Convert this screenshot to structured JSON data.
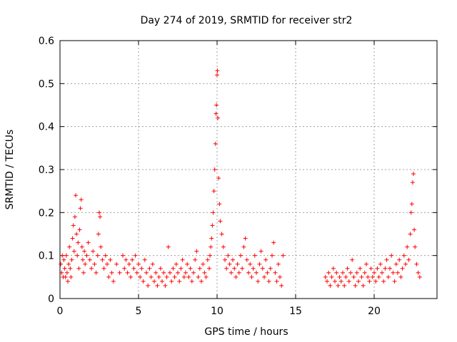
{
  "chart_data": {
    "type": "scatter",
    "title": "Day 274 of 2019, SRMTID for receiver str2",
    "xlabel": "GPS time / hours",
    "ylabel": "SRMTID / TECUs",
    "xlim": [
      0,
      24
    ],
    "ylim": [
      0,
      0.6
    ],
    "xticks": [
      0,
      5,
      10,
      15,
      20
    ],
    "yticks": [
      0,
      0.1,
      0.2,
      0.3,
      0.4,
      0.5,
      0.6
    ],
    "ytick_labels": [
      "0",
      "0.1",
      "0.2",
      "0.3",
      "0.4",
      "0.5",
      "0.6"
    ],
    "grid": true,
    "marker": "+",
    "color": "#ff0000",
    "series": [
      {
        "name": "SRMTID",
        "points": [
          [
            0.05,
            0.08
          ],
          [
            0.1,
            0.06
          ],
          [
            0.15,
            0.1
          ],
          [
            0.2,
            0.05
          ],
          [
            0.25,
            0.09
          ],
          [
            0.3,
            0.07
          ],
          [
            0.35,
            0.05
          ],
          [
            0.4,
            0.1
          ],
          [
            0.45,
            0.06
          ],
          [
            0.5,
            0.04
          ],
          [
            0.55,
            0.08
          ],
          [
            0.6,
            0.12
          ],
          [
            0.65,
            0.07
          ],
          [
            0.7,
            0.05
          ],
          [
            0.75,
            0.09
          ],
          [
            0.8,
            0.14
          ],
          [
            0.85,
            0.17
          ],
          [
            0.9,
            0.11
          ],
          [
            0.95,
            0.19
          ],
          [
            1.0,
            0.24
          ],
          [
            1.05,
            0.15
          ],
          [
            1.1,
            0.1
          ],
          [
            1.15,
            0.13
          ],
          [
            1.2,
            0.07
          ],
          [
            1.25,
            0.16
          ],
          [
            1.3,
            0.21
          ],
          [
            1.35,
            0.23
          ],
          [
            1.4,
            0.12
          ],
          [
            1.45,
            0.09
          ],
          [
            1.5,
            0.06
          ],
          [
            1.55,
            0.11
          ],
          [
            1.6,
            0.08
          ],
          [
            1.7,
            0.1
          ],
          [
            1.8,
            0.13
          ],
          [
            1.9,
            0.09
          ],
          [
            2.0,
            0.07
          ],
          [
            2.1,
            0.11
          ],
          [
            2.2,
            0.08
          ],
          [
            2.3,
            0.06
          ],
          [
            2.4,
            0.1
          ],
          [
            2.45,
            0.15
          ],
          [
            2.5,
            0.2
          ],
          [
            2.55,
            0.19
          ],
          [
            2.6,
            0.12
          ],
          [
            2.7,
            0.09
          ],
          [
            2.8,
            0.07
          ],
          [
            2.9,
            0.1
          ],
          [
            3.0,
            0.08
          ],
          [
            3.1,
            0.05
          ],
          [
            3.2,
            0.09
          ],
          [
            3.3,
            0.06
          ],
          [
            3.4,
            0.04
          ],
          [
            3.6,
            0.08
          ],
          [
            3.8,
            0.06
          ],
          [
            4.0,
            0.1
          ],
          [
            4.1,
            0.07
          ],
          [
            4.2,
            0.09
          ],
          [
            4.3,
            0.06
          ],
          [
            4.4,
            0.08
          ],
          [
            4.5,
            0.05
          ],
          [
            4.6,
            0.09
          ],
          [
            4.7,
            0.07
          ],
          [
            4.8,
            0.1
          ],
          [
            4.9,
            0.06
          ],
          [
            5.0,
            0.08
          ],
          [
            5.1,
            0.05
          ],
          [
            5.2,
            0.07
          ],
          [
            5.3,
            0.04
          ],
          [
            5.4,
            0.09
          ],
          [
            5.5,
            0.06
          ],
          [
            5.6,
            0.03
          ],
          [
            5.7,
            0.07
          ],
          [
            5.8,
            0.05
          ],
          [
            5.9,
            0.08
          ],
          [
            6.0,
            0.04
          ],
          [
            6.1,
            0.06
          ],
          [
            6.2,
            0.03
          ],
          [
            6.3,
            0.05
          ],
          [
            6.4,
            0.07
          ],
          [
            6.5,
            0.04
          ],
          [
            6.6,
            0.06
          ],
          [
            6.7,
            0.03
          ],
          [
            6.8,
            0.05
          ],
          [
            6.9,
            0.12
          ],
          [
            7.0,
            0.06
          ],
          [
            7.1,
            0.04
          ],
          [
            7.2,
            0.07
          ],
          [
            7.3,
            0.05
          ],
          [
            7.4,
            0.08
          ],
          [
            7.5,
            0.06
          ],
          [
            7.6,
            0.04
          ],
          [
            7.7,
            0.07
          ],
          [
            7.8,
            0.09
          ],
          [
            7.9,
            0.05
          ],
          [
            8.0,
            0.06
          ],
          [
            8.1,
            0.08
          ],
          [
            8.2,
            0.05
          ],
          [
            8.3,
            0.07
          ],
          [
            8.4,
            0.04
          ],
          [
            8.5,
            0.06
          ],
          [
            8.6,
            0.09
          ],
          [
            8.7,
            0.11
          ],
          [
            8.8,
            0.05
          ],
          [
            8.9,
            0.07
          ],
          [
            9.0,
            0.04
          ],
          [
            9.1,
            0.08
          ],
          [
            9.2,
            0.06
          ],
          [
            9.3,
            0.05
          ],
          [
            9.4,
            0.09
          ],
          [
            9.5,
            0.07
          ],
          [
            9.55,
            0.1
          ],
          [
            9.6,
            0.12
          ],
          [
            9.65,
            0.14
          ],
          [
            9.7,
            0.17
          ],
          [
            9.75,
            0.2
          ],
          [
            9.8,
            0.25
          ],
          [
            9.85,
            0.3
          ],
          [
            9.9,
            0.36
          ],
          [
            9.93,
            0.43
          ],
          [
            9.96,
            0.45
          ],
          [
            10.0,
            0.52
          ],
          [
            10.02,
            0.53
          ],
          [
            10.05,
            0.42
          ],
          [
            10.1,
            0.28
          ],
          [
            10.15,
            0.22
          ],
          [
            10.2,
            0.18
          ],
          [
            10.3,
            0.15
          ],
          [
            10.4,
            0.12
          ],
          [
            10.5,
            0.09
          ],
          [
            10.6,
            0.07
          ],
          [
            10.7,
            0.1
          ],
          [
            10.8,
            0.08
          ],
          [
            10.9,
            0.06
          ],
          [
            11.0,
            0.09
          ],
          [
            11.1,
            0.07
          ],
          [
            11.2,
            0.05
          ],
          [
            11.3,
            0.08
          ],
          [
            11.4,
            0.06
          ],
          [
            11.5,
            0.1
          ],
          [
            11.6,
            0.07
          ],
          [
            11.7,
            0.12
          ],
          [
            11.8,
            0.14
          ],
          [
            11.9,
            0.09
          ],
          [
            12.0,
            0.06
          ],
          [
            12.1,
            0.08
          ],
          [
            12.2,
            0.05
          ],
          [
            12.3,
            0.07
          ],
          [
            12.4,
            0.1
          ],
          [
            12.5,
            0.06
          ],
          [
            12.6,
            0.04
          ],
          [
            12.7,
            0.08
          ],
          [
            12.8,
            0.11
          ],
          [
            12.9,
            0.07
          ],
          [
            13.0,
            0.05
          ],
          [
            13.1,
            0.09
          ],
          [
            13.2,
            0.06
          ],
          [
            13.3,
            0.04
          ],
          [
            13.4,
            0.07
          ],
          [
            13.5,
            0.1
          ],
          [
            13.6,
            0.13
          ],
          [
            13.7,
            0.06
          ],
          [
            13.8,
            0.04
          ],
          [
            13.9,
            0.08
          ],
          [
            14.0,
            0.05
          ],
          [
            14.1,
            0.03
          ],
          [
            14.2,
            0.1
          ],
          [
            16.9,
            0.05
          ],
          [
            17.0,
            0.04
          ],
          [
            17.1,
            0.06
          ],
          [
            17.2,
            0.03
          ],
          [
            17.3,
            0.05
          ],
          [
            17.4,
            0.07
          ],
          [
            17.5,
            0.04
          ],
          [
            17.6,
            0.06
          ],
          [
            17.7,
            0.03
          ],
          [
            17.8,
            0.05
          ],
          [
            17.9,
            0.04
          ],
          [
            18.0,
            0.06
          ],
          [
            18.1,
            0.03
          ],
          [
            18.2,
            0.05
          ],
          [
            18.3,
            0.07
          ],
          [
            18.4,
            0.04
          ],
          [
            18.5,
            0.06
          ],
          [
            18.6,
            0.09
          ],
          [
            18.7,
            0.05
          ],
          [
            18.8,
            0.03
          ],
          [
            18.9,
            0.06
          ],
          [
            19.0,
            0.04
          ],
          [
            19.1,
            0.07
          ],
          [
            19.2,
            0.05
          ],
          [
            19.3,
            0.03
          ],
          [
            19.4,
            0.06
          ],
          [
            19.5,
            0.08
          ],
          [
            19.6,
            0.05
          ],
          [
            19.7,
            0.04
          ],
          [
            19.8,
            0.07
          ],
          [
            19.9,
            0.05
          ],
          [
            20.0,
            0.06
          ],
          [
            20.1,
            0.04
          ],
          [
            20.2,
            0.07
          ],
          [
            20.3,
            0.05
          ],
          [
            20.4,
            0.08
          ],
          [
            20.5,
            0.06
          ],
          [
            20.6,
            0.04
          ],
          [
            20.7,
            0.07
          ],
          [
            20.8,
            0.09
          ],
          [
            20.9,
            0.05
          ],
          [
            21.0,
            0.07
          ],
          [
            21.1,
            0.1
          ],
          [
            21.2,
            0.06
          ],
          [
            21.3,
            0.04
          ],
          [
            21.4,
            0.08
          ],
          [
            21.5,
            0.06
          ],
          [
            21.6,
            0.09
          ],
          [
            21.7,
            0.05
          ],
          [
            21.8,
            0.07
          ],
          [
            21.9,
            0.1
          ],
          [
            22.0,
            0.08
          ],
          [
            22.1,
            0.12
          ],
          [
            22.2,
            0.09
          ],
          [
            22.3,
            0.15
          ],
          [
            22.35,
            0.2
          ],
          [
            22.4,
            0.22
          ],
          [
            22.45,
            0.27
          ],
          [
            22.5,
            0.29
          ],
          [
            22.55,
            0.16
          ],
          [
            22.6,
            0.12
          ],
          [
            22.7,
            0.08
          ],
          [
            22.8,
            0.06
          ],
          [
            22.9,
            0.05
          ]
        ]
      }
    ]
  }
}
